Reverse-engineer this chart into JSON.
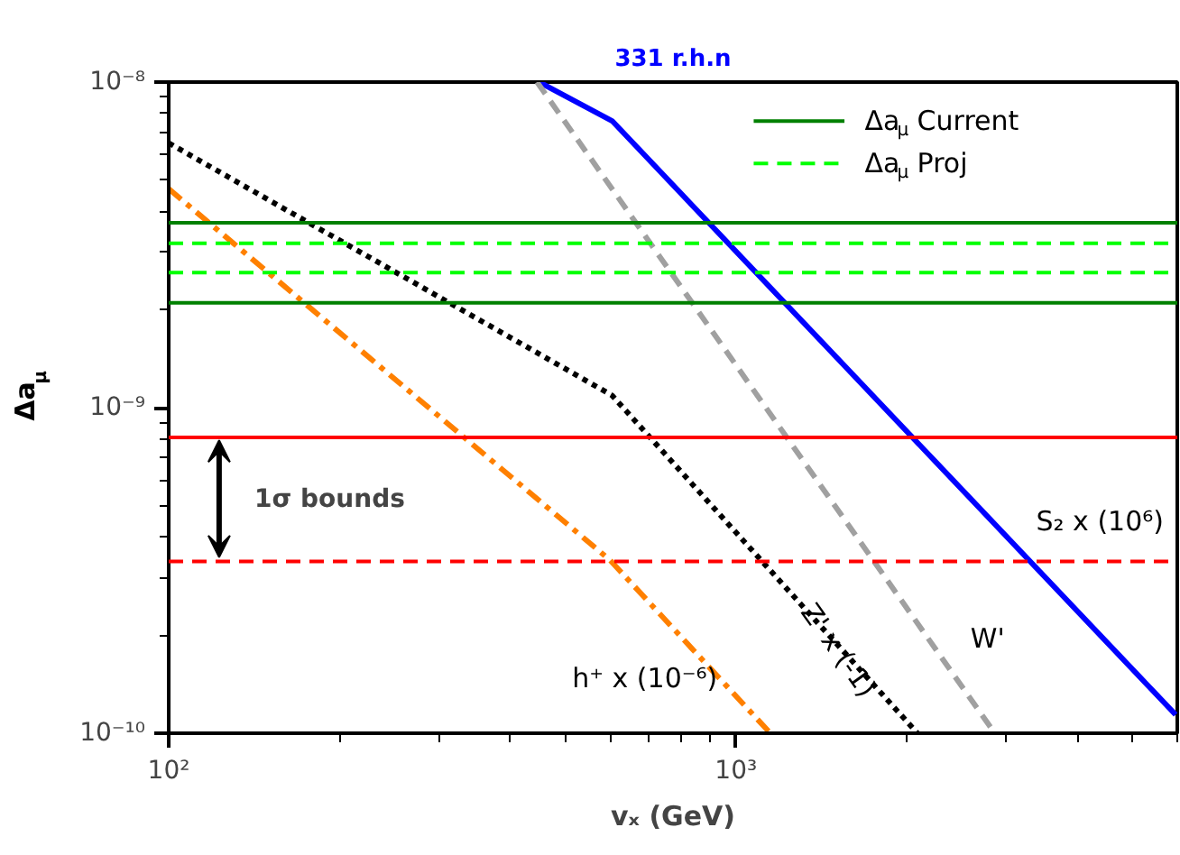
{
  "chart_data": {
    "type": "line",
    "title": "331 r.h.n",
    "xlabel": "vₓ (GeV)",
    "ylabel": "Δa$_{μ}$",
    "log": "xy",
    "grid": false,
    "legend": "top right",
    "xlim": [
      100,
      6000
    ],
    "ylim": [
      1e-10,
      1e-08
    ],
    "xticks": [
      {
        "value": 100,
        "label": "10²"
      },
      {
        "value": 1000,
        "label": "10³"
      }
    ],
    "yticks": [
      {
        "value": 1e-10,
        "label": "10⁻¹⁰"
      },
      {
        "value": 1e-09,
        "label": "10⁻⁹"
      },
      {
        "value": 1e-08,
        "label": "10⁻⁸"
      }
    ],
    "series": [
      {
        "name": "S₂ x (10⁶)",
        "color": "#0000ff",
        "line_style": "solid",
        "x": [
          450,
          605,
          5960
        ],
        "values": [
          1e-08,
          7.6e-09,
          1.14e-10
        ]
      },
      {
        "name": "Z' x (-1)",
        "color": "#000000",
        "line_style": "dotted",
        "x": [
          100,
          605,
          2090
        ],
        "values": [
          6.5e-09,
          1.09e-09,
          1e-10
        ]
      },
      {
        "name": "W'",
        "color": "#a0a0a0",
        "line_style": "dashed",
        "x": [
          446,
          2860
        ],
        "values": [
          1e-08,
          1e-10
        ]
      },
      {
        "name": "h⁺ x (10⁻⁶)",
        "color": "#ff8000",
        "line_style": "dashdot",
        "x": [
          100,
          600,
          1150
        ],
        "values": [
          4.7e-09,
          3.4e-10,
          1e-10
        ]
      }
    ],
    "ref_lines": [
      {
        "axis": "y",
        "value": 3.7e-09,
        "label": "Δa$_{μ}$ Current",
        "color": "#008000",
        "line_style": "solid"
      },
      {
        "axis": "y",
        "value": 2.1e-09,
        "color": "#008000",
        "line_style": "solid"
      },
      {
        "axis": "y",
        "value": 3.2e-09,
        "label": "Δa$_{μ}$ Proj",
        "color": "#00ff00",
        "line_style": "dashed"
      },
      {
        "axis": "y",
        "value": 2.6e-09,
        "color": "#00ff00",
        "line_style": "dashed"
      },
      {
        "axis": "y",
        "value": 8.1e-10,
        "color": "#ff0000",
        "line_style": "solid"
      },
      {
        "axis": "y",
        "value": 3.37e-10,
        "color": "#ff0000",
        "line_style": "dashed"
      }
    ],
    "annotations": [
      "1σ bounds"
    ]
  }
}
